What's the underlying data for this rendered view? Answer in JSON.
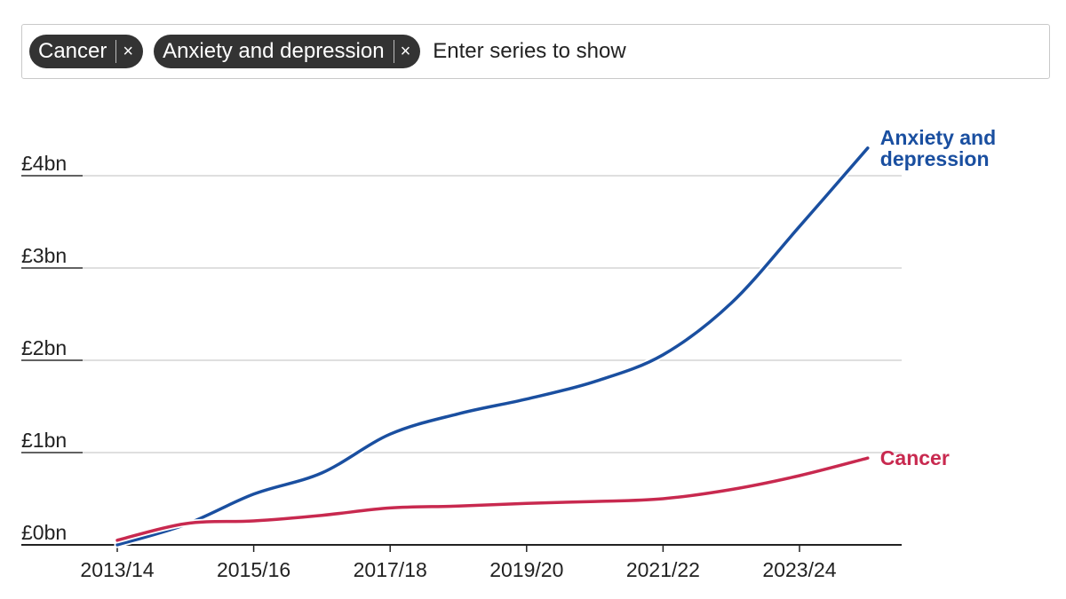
{
  "series_picker": {
    "chips": [
      {
        "label": "Cancer",
        "remove_icon": "×"
      },
      {
        "label": "Anxiety and depression",
        "remove_icon": "×"
      }
    ],
    "placeholder": "Enter series to show"
  },
  "chart_data": {
    "type": "line",
    "title": "",
    "xlabel": "",
    "ylabel": "",
    "x": [
      "2013/14",
      "2014/15",
      "2015/16",
      "2016/17",
      "2017/18",
      "2018/19",
      "2019/20",
      "2020/21",
      "2021/22",
      "2022/23",
      "2023/24",
      "2024/25"
    ],
    "xtick_labels": [
      "2013/14",
      "2015/16",
      "2017/18",
      "2019/20",
      "2021/22",
      "2023/24"
    ],
    "yticks": [
      {
        "value": 0,
        "label": "£0bn"
      },
      {
        "value": 1,
        "label": "£1bn"
      },
      {
        "value": 2,
        "label": "£2bn"
      },
      {
        "value": 3,
        "label": "£3bn"
      },
      {
        "value": 4,
        "label": "£4bn"
      }
    ],
    "ylim": [
      0,
      4.3
    ],
    "grid": true,
    "series": [
      {
        "name": "Anxiety and depression",
        "label_lines": [
          "Anxiety and",
          "depression"
        ],
        "color": "#1a4fa0",
        "values": [
          0.0,
          0.22,
          0.55,
          0.78,
          1.2,
          1.42,
          1.58,
          1.77,
          2.06,
          2.62,
          3.45,
          4.3
        ]
      },
      {
        "name": "Cancer",
        "label_lines": [
          "Cancer"
        ],
        "color": "#c8294f",
        "values": [
          0.05,
          0.23,
          0.26,
          0.32,
          0.4,
          0.42,
          0.45,
          0.47,
          0.5,
          0.6,
          0.75,
          0.94
        ]
      }
    ],
    "legend": "direct-labels-right"
  }
}
